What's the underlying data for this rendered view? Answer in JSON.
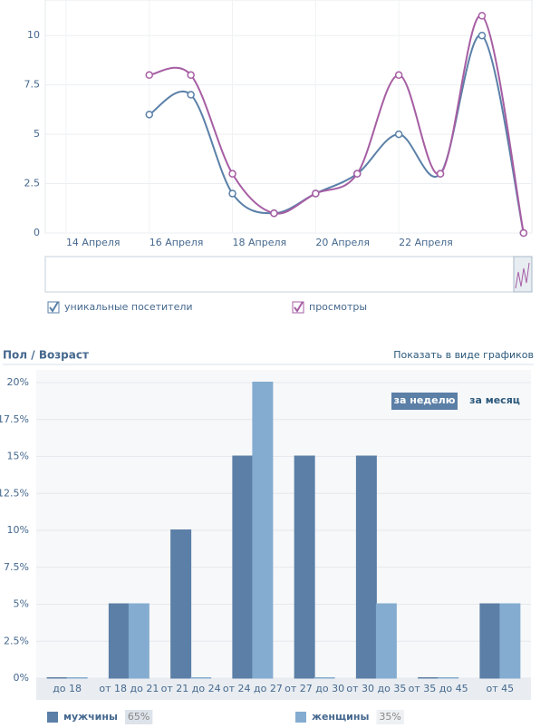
{
  "chart_data": [
    {
      "type": "line",
      "x": [
        16,
        17,
        18,
        19,
        20,
        21,
        22,
        23,
        24,
        25
      ],
      "xlim": [
        13.5,
        25.2
      ],
      "xticks": [
        {
          "value": 14,
          "label": "14 Апреля"
        },
        {
          "value": 16,
          "label": "16 Апреля"
        },
        {
          "value": 18,
          "label": "18 Апреля"
        },
        {
          "value": 20,
          "label": "20 Апреля"
        },
        {
          "value": 22,
          "label": "22 Апреля"
        }
      ],
      "ylim": [
        0,
        11.8
      ],
      "yticks": [
        0,
        2.5,
        5,
        7.5,
        10
      ],
      "grid": true,
      "series": [
        {
          "name": "уникальные посетители",
          "color": "#5a80a8",
          "values": [
            6,
            7,
            2,
            1,
            2,
            3,
            5,
            3,
            10,
            0
          ]
        },
        {
          "name": "просмотры",
          "color": "#a65ea3",
          "values": [
            8,
            8,
            3,
            1,
            2,
            3,
            8,
            3,
            11,
            0
          ]
        }
      ]
    },
    {
      "type": "bar",
      "title": "Пол / Возраст",
      "link": "Показать в виде графиков",
      "buttons": [
        "за неделю",
        "за месяц"
      ],
      "categories": [
        "до 18",
        "от 18 до 21",
        "от 21 до 24",
        "от 24 до 27",
        "от 27 до 30",
        "от 30 до 35",
        "от 35 до 45",
        "от 45"
      ],
      "ylim": [
        0,
        20
      ],
      "yticks": [
        {
          "value": 0,
          "label": "0%"
        },
        {
          "value": 2.5,
          "label": "2.5%"
        },
        {
          "value": 5,
          "label": "5%"
        },
        {
          "value": 7.5,
          "label": "7.5%"
        },
        {
          "value": 10,
          "label": "10%"
        },
        {
          "value": 12.5,
          "label": "12.5%"
        },
        {
          "value": 15,
          "label": "15%"
        },
        {
          "value": 17.5,
          "label": "17.5%"
        },
        {
          "value": 20,
          "label": "20%"
        }
      ],
      "grid": true,
      "series": [
        {
          "name": "мужчины",
          "color": "#5b7fa6",
          "values": [
            0,
            5,
            10,
            15,
            15,
            15,
            0,
            5
          ],
          "share": 65,
          "share_label": "65%"
        },
        {
          "name": "женщины",
          "color": "#84acd0",
          "values": [
            0,
            5,
            0,
            20,
            0,
            5,
            0,
            5
          ],
          "share": 35,
          "share_label": "35%"
        }
      ]
    }
  ]
}
